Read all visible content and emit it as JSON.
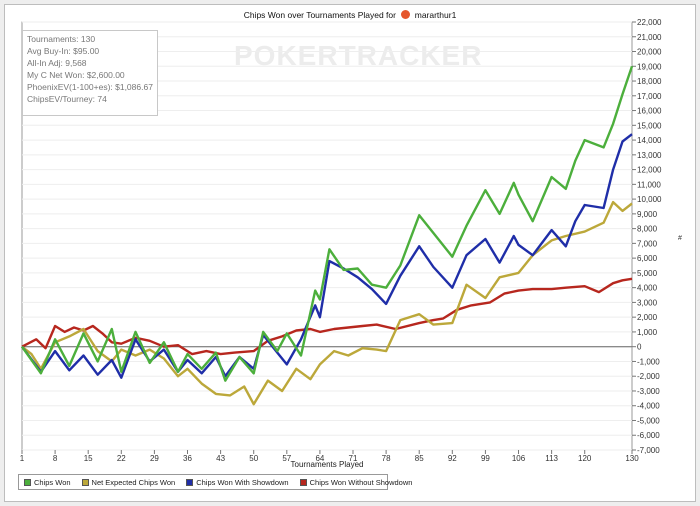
{
  "chart_data": {
    "type": "line",
    "title": "Chips Won over Tournaments Played for",
    "player": "mararthur1",
    "watermark": "POKERTRACKER",
    "xlabel": "Tournaments Played",
    "ylabel": "",
    "xlim": [
      1,
      130
    ],
    "ylim": [
      -7000,
      22000
    ],
    "x_ticks": [
      "1",
      "8",
      "15",
      "22",
      "29",
      "36",
      "43",
      "50",
      "57",
      "64",
      "71",
      "78",
      "85",
      "92",
      "99",
      "106",
      "113",
      "120",
      "130"
    ],
    "y_ticks": [
      "22,000",
      "21,000",
      "20,000",
      "19,000",
      "18,000",
      "17,000",
      "16,000",
      "15,000",
      "14,000",
      "13,000",
      "12,000",
      "11,000",
      "10,000",
      "9,000",
      "8,000",
      "7,000",
      "6,000",
      "5,000",
      "4,000",
      "3,000",
      "2,000",
      "1,000",
      "0",
      "-1,000",
      "-2,000",
      "-3,000",
      "-4,000",
      "-5,000",
      "-6,000",
      "-7,000"
    ],
    "stats": [
      "Tournaments: 130",
      "Avg Buy-In: $95.00",
      "All-In Adj: 9,568",
      "My C Net Won: $2,600.00",
      "PhoenixEV(1-100+es): $1,086.67",
      "ChipsEV/Tourney: 74"
    ],
    "series": [
      {
        "name": "Chips Won",
        "color": "#4caf3c",
        "x": [
          1,
          5,
          8,
          11,
          14,
          17,
          20,
          22,
          25,
          28,
          31,
          34,
          36,
          39,
          42,
          44,
          47,
          50,
          52,
          55,
          57,
          60,
          63,
          64,
          66,
          69,
          72,
          75,
          78,
          81,
          85,
          88,
          92,
          95,
          99,
          102,
          105,
          106,
          109,
          113,
          116,
          118,
          120,
          124,
          126,
          128,
          130
        ],
        "y": [
          0,
          -1800,
          500,
          -1300,
          900,
          -1000,
          1200,
          -1700,
          1000,
          -1100,
          300,
          -1700,
          -500,
          -1500,
          -400,
          -2300,
          -700,
          -1800,
          1000,
          -300,
          900,
          -600,
          3800,
          3200,
          6600,
          5200,
          5300,
          4200,
          4000,
          5500,
          8900,
          7700,
          6100,
          8200,
          10600,
          9000,
          11100,
          10300,
          8500,
          11500,
          10700,
          12600,
          14000,
          13500,
          15100,
          17100,
          19000
        ]
      },
      {
        "name": "Net Expected Chips Won",
        "color": "#bca83a",
        "x": [
          1,
          3,
          5,
          8,
          11,
          14,
          17,
          20,
          22,
          25,
          28,
          31,
          34,
          36,
          39,
          42,
          45,
          48,
          50,
          53,
          56,
          59,
          62,
          64,
          67,
          70,
          73,
          76,
          78,
          81,
          85,
          88,
          92,
          95,
          99,
          102,
          106,
          109,
          113,
          116,
          120,
          124,
          126,
          128,
          130
        ],
        "y": [
          0,
          -500,
          -1500,
          300,
          700,
          1200,
          -300,
          -1000,
          -200,
          -600,
          -200,
          -800,
          -2000,
          -1500,
          -2500,
          -3200,
          -3300,
          -2700,
          -3900,
          -2300,
          -3000,
          -1500,
          -2200,
          -1200,
          -300,
          -600,
          -100,
          -200,
          -300,
          1800,
          2200,
          1500,
          1600,
          4200,
          3300,
          4700,
          5000,
          6200,
          7200,
          7500,
          7800,
          8400,
          9800,
          9200,
          9700
        ]
      },
      {
        "name": "Chips Won With Showdown",
        "color": "#1f2ea8",
        "x": [
          1,
          5,
          8,
          11,
          14,
          17,
          20,
          22,
          25,
          28,
          31,
          34,
          36,
          39,
          42,
          44,
          47,
          50,
          52,
          55,
          57,
          60,
          63,
          64,
          66,
          69,
          72,
          75,
          78,
          81,
          85,
          88,
          92,
          95,
          99,
          102,
          105,
          106,
          109,
          113,
          116,
          118,
          120,
          124,
          126,
          128,
          130
        ],
        "y": [
          0,
          -1700,
          -300,
          -1600,
          -600,
          -1900,
          -900,
          -2100,
          500,
          -1000,
          -200,
          -1700,
          -900,
          -1800,
          -700,
          -2000,
          -700,
          -1500,
          800,
          -400,
          -1200,
          500,
          2800,
          2000,
          5800,
          5300,
          4700,
          3900,
          2900,
          4800,
          6800,
          5400,
          4000,
          6200,
          7300,
          5700,
          7500,
          6900,
          6200,
          7900,
          6800,
          8500,
          9600,
          9400,
          12000,
          13900,
          14400
        ]
      },
      {
        "name": "Chips Won Without Showdown",
        "color": "#b7271e",
        "x": [
          1,
          4,
          6,
          8,
          10,
          12,
          14,
          16,
          18,
          20,
          22,
          25,
          28,
          31,
          34,
          37,
          40,
          43,
          46,
          50,
          53,
          56,
          59,
          62,
          64,
          67,
          70,
          73,
          76,
          80,
          85,
          88,
          90,
          93,
          96,
          100,
          103,
          106,
          109,
          113,
          116,
          120,
          123,
          126,
          128,
          130
        ],
        "y": [
          0,
          500,
          -100,
          1400,
          1000,
          1300,
          1100,
          1400,
          900,
          300,
          200,
          600,
          400,
          0,
          100,
          -500,
          -300,
          -500,
          -400,
          -300,
          400,
          700,
          1100,
          1200,
          1000,
          1200,
          1300,
          1400,
          1500,
          1200,
          1600,
          1800,
          1900,
          2500,
          2800,
          3000,
          3600,
          3800,
          3900,
          3900,
          4000,
          4100,
          3700,
          4300,
          4500,
          4600
        ]
      }
    ]
  }
}
